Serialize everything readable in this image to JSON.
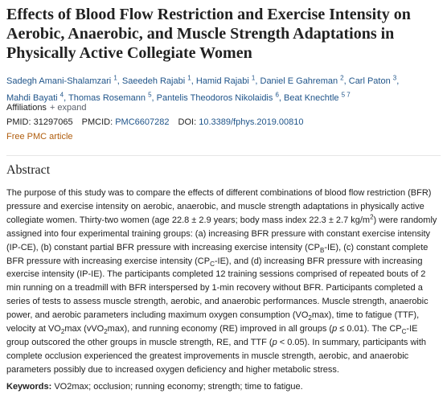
{
  "header": {
    "title": "Effects of Blood Flow Restriction and Exercise Intensity on Aerobic, Anaerobic, and Muscle Strength Adaptations in Physically Active Collegiate Women"
  },
  "authors": [
    {
      "name": "Sadegh Amani-Shalamzari",
      "aff": "1"
    },
    {
      "name": "Saeedeh Rajabi",
      "aff": "1"
    },
    {
      "name": "Hamid Rajabi",
      "aff": "1"
    },
    {
      "name": "Daniel E Gahreman",
      "aff": "2"
    },
    {
      "name": "Carl Paton",
      "aff": "3"
    },
    {
      "name": "Mahdi Bayati",
      "aff": "4"
    },
    {
      "name": "Thomas Rosemann",
      "aff": "5"
    },
    {
      "name": "Pantelis Theodoros Nikolaidis",
      "aff": "6"
    },
    {
      "name": "Beat Knechtle",
      "aff": "5 7"
    }
  ],
  "author_separator": ",",
  "affiliations": {
    "label": "Affiliations",
    "toggle": "+ expand"
  },
  "ids": {
    "pmid": {
      "label": "PMID:",
      "value": "31297065"
    },
    "pmcid": {
      "label": "PMCID:",
      "value": "PMC6607282"
    },
    "doi": {
      "label": "DOI:",
      "value": "10.3389/fphys.2019.00810"
    }
  },
  "free": "Free PMC article",
  "abstract": {
    "heading": "Abstract",
    "runs": [
      "The purpose of this study was to compare the effects of different combinations of blood flow restriction (BFR) pressure and exercise intensity on aerobic, anaerobic, and muscle strength adaptations in physically active collegiate women. Thirty-two women (age 22.8 ± 2.9 years; body mass index 22.3 ± 2.7 kg/m",
      {
        "sup": "2"
      },
      ") were randomly assigned into four experimental training groups: (a) increasing BFR pressure with constant exercise intensity (IP-CE), (b) constant partial BFR pressure with increasing exercise intensity (CP",
      {
        "sub": "B"
      },
      "-IE), (c) constant complete BFR pressure with increasing exercise intensity (CP",
      {
        "sub": "C"
      },
      "-IE), and (d) increasing BFR pressure with increasing exercise intensity (IP-IE). The participants completed 12 training sessions comprised of repeated bouts of 2 min running on a treadmill with BFR interspersed by 1-min recovery without BFR. Participants completed a series of tests to assess muscle strength, aerobic, and anaerobic performances. Muscle strength, anaerobic power, and aerobic parameters including maximum oxygen consumption (VO",
      {
        "sub": "2"
      },
      "max), time to fatigue (TTF), velocity at VO",
      {
        "sub": "2"
      },
      "max (vVO",
      {
        "sub": "2"
      },
      "max), and running economy (RE) improved in all groups (",
      {
        "i": "p"
      },
      " ≤ 0.01). The CP",
      {
        "sub": "C"
      },
      "-IE group outscored the other groups in muscle strength, RE, and TTF (",
      {
        "i": "p"
      },
      " < 0.05). In summary, participants with complete occlusion experienced the greatest improvements in muscle strength, aerobic, and anaerobic parameters possibly due to increased oxygen deficiency and higher metabolic stress."
    ]
  },
  "keywords": {
    "label": "Keywords:",
    "text": "VO2max; occlusion; running economy; strength; time to fatigue."
  }
}
